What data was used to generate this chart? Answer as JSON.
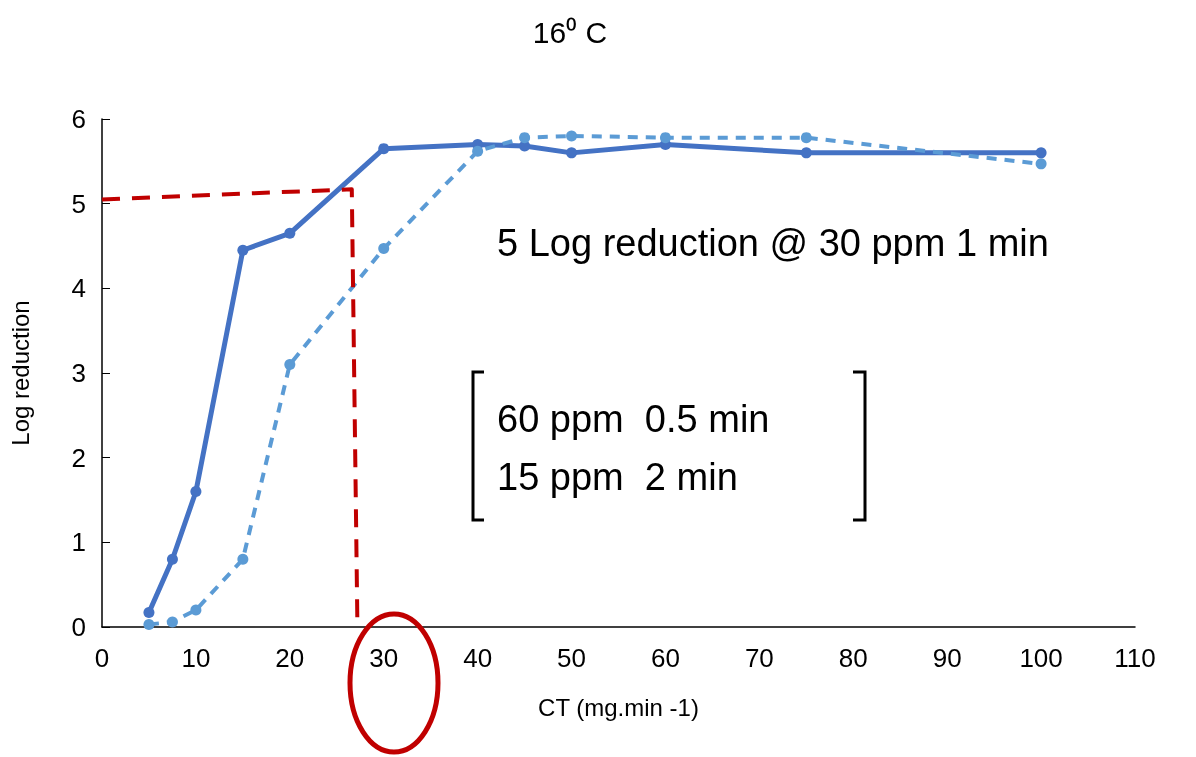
{
  "chart_data": {
    "type": "line",
    "title": "16⁰ C",
    "xlabel": "CT (mg.min -1)",
    "ylabel": "Log reduction",
    "xlim": [
      0,
      110
    ],
    "xticks": [
      0,
      10,
      20,
      30,
      40,
      50,
      60,
      70,
      80,
      90,
      100,
      110
    ],
    "ylim": [
      0,
      6
    ],
    "yticks": [
      0,
      1,
      2,
      3,
      4,
      5,
      6
    ],
    "grid": false,
    "marker": "circle",
    "series": [
      {
        "color": "#4472c4",
        "line_style": "solid",
        "x": [
          5,
          7.5,
          10,
          15,
          20,
          30,
          40,
          45,
          50,
          60,
          75,
          100
        ],
        "values": [
          0.17,
          0.8,
          1.6,
          4.45,
          4.65,
          5.65,
          5.7,
          5.68,
          5.6,
          5.7,
          5.6,
          5.6
        ]
      },
      {
        "color": "#5b9bd5",
        "line_style": "dashed",
        "x": [
          5,
          7.5,
          10,
          15,
          20,
          30,
          40,
          45,
          50,
          60,
          75,
          100
        ],
        "values": [
          0.03,
          0.06,
          0.2,
          0.8,
          3.1,
          4.47,
          5.62,
          5.78,
          5.8,
          5.78,
          5.78,
          5.47
        ]
      },
      {
        "color": "#c00000",
        "line_style": "dashed",
        "marker": "none",
        "x": [
          0,
          26.6,
          27.2
        ],
        "values": [
          5.05,
          5.17,
          0
        ]
      }
    ],
    "annotations": [
      "5 Log reduction @ 30 ppm 1 min",
      "60 ppm  0.5 min",
      "15 ppm  2 min"
    ]
  }
}
